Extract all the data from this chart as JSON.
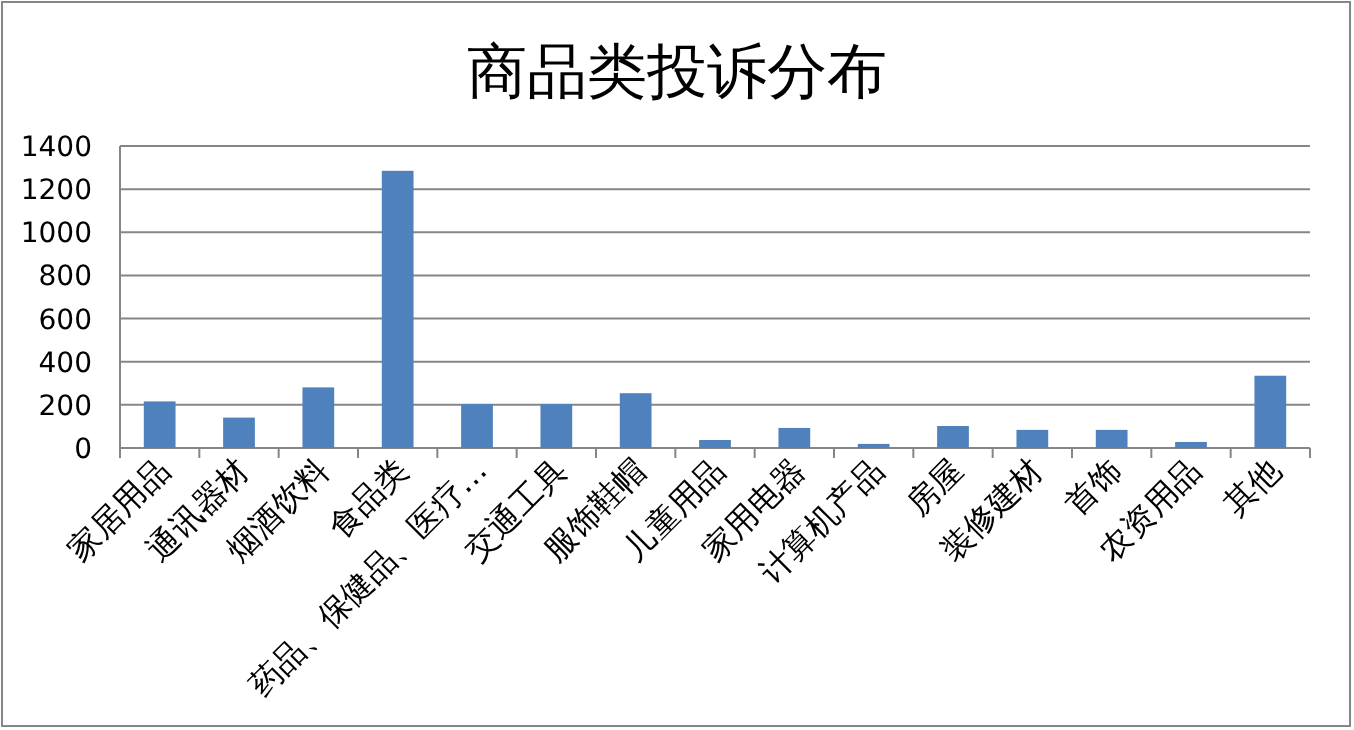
{
  "chart_data": {
    "type": "bar",
    "title": "商品类投诉分布",
    "categories": [
      "家居用品",
      "通讯器材",
      "烟酒饮料",
      "食品类",
      "药品、保健品、医疗…",
      "交通工具",
      "服饰鞋帽",
      "儿童用品",
      "家用电器",
      "计算机产品",
      "房屋",
      "装修建材",
      "首饰",
      "农资用品",
      "其他"
    ],
    "values": [
      216,
      141,
      281,
      1285,
      204,
      204,
      254,
      37,
      93,
      19,
      102,
      84,
      84,
      28,
      335
    ],
    "color": "#4f81bd",
    "ylim": [
      0,
      1400
    ],
    "yticks": [
      0,
      200,
      400,
      600,
      800,
      1000,
      1200,
      1400
    ],
    "grid": "y"
  }
}
